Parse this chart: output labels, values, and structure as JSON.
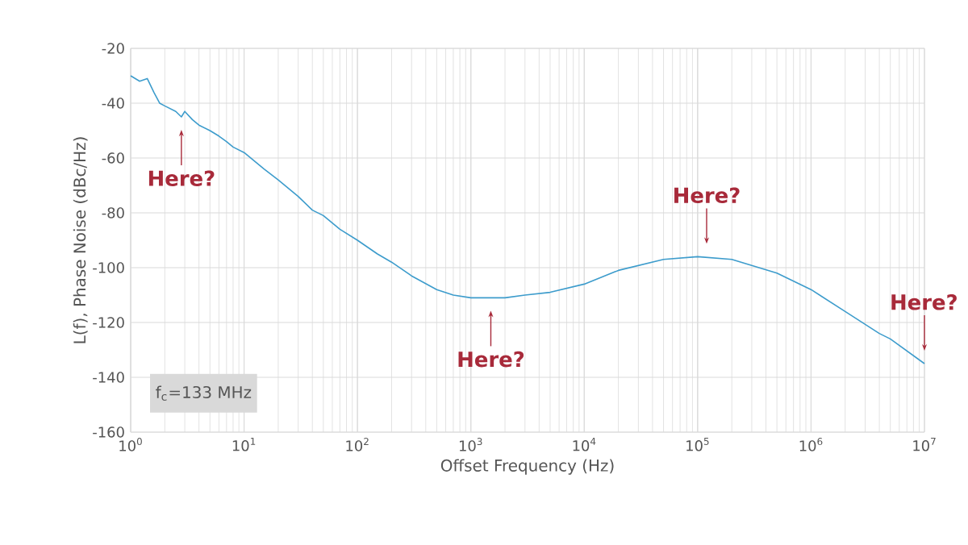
{
  "chart_data": {
    "type": "line",
    "xlabel": "Offset Frequency (Hz)",
    "ylabel": "L(f), Phase Noise (dBc/Hz)",
    "log": "x",
    "grid": true,
    "marker": "none",
    "line_style": "solid",
    "xlim": [
      1,
      10000000
    ],
    "ylim": [
      -160,
      -20
    ],
    "xticks": [
      {
        "value": 1,
        "label": "10$^{0}$"
      },
      {
        "value": 10,
        "label": "10$^{1}$"
      },
      {
        "value": 100,
        "label": "10$^{2}$"
      },
      {
        "value": 1000,
        "label": "10$^{3}$"
      },
      {
        "value": 10000,
        "label": "10$^{4}$"
      },
      {
        "value": 100000,
        "label": "10$^{5}$"
      },
      {
        "value": 1000000,
        "label": "10$^{6}$"
      },
      {
        "value": 10000000,
        "label": "10$^{7}$"
      }
    ],
    "yticks": [
      -160,
      -140,
      -120,
      -100,
      -80,
      -60,
      -40,
      -20
    ],
    "series": [
      {
        "color": "#3d9ccc",
        "x": [
          1,
          1.2,
          1.4,
          1.6,
          1.8,
          2,
          2.5,
          2.8,
          3,
          3.5,
          4,
          5,
          6,
          7,
          8,
          10,
          15,
          20,
          30,
          40,
          50,
          70,
          100,
          150,
          200,
          300,
          500,
          700,
          1000,
          2000,
          3000,
          5000,
          10000,
          20000,
          50000,
          100000,
          200000,
          500000,
          1000000,
          2000000,
          4000000,
          5000000,
          10000000
        ],
        "values": [
          -30,
          -32,
          -31,
          -36,
          -40,
          -41,
          -43,
          -45,
          -43,
          -46,
          -48,
          -50,
          -52,
          -54,
          -56,
          -58,
          -64,
          -68,
          -74,
          -79,
          -81,
          -86,
          -90,
          -95,
          -98,
          -103,
          -108,
          -110,
          -111,
          -111,
          -110,
          -109,
          -106,
          -101,
          -97,
          -96,
          -97,
          -102,
          -108,
          -116,
          -124,
          -126,
          -135
        ]
      }
    ],
    "annotations": [
      {
        "text": "Here?",
        "x": 2.8,
        "y": -45
      },
      {
        "text": "Here?",
        "x": 1500,
        "y": -111
      },
      {
        "text": "Here?",
        "x": 120000,
        "y": -96
      },
      {
        "text": "Here?",
        "x": 10000000,
        "y": -135
      },
      "f$_{c}$=133 MHz"
    ]
  }
}
